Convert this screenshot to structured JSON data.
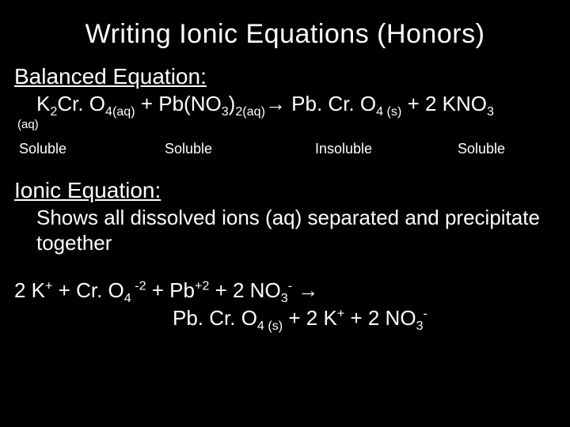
{
  "background_color": "#000000",
  "text_color": "#ffffff",
  "font_family": "Arial",
  "title": "Writing Ionic Equations  (Honors)",
  "balanced": {
    "heading": "Balanced Equation:",
    "react1_pre": "K",
    "react1_sub1": "2",
    "react1_mid": "Cr. O",
    "react1_sub2": "4(aq)",
    "plus1": " +  ",
    "react2_pre": "Pb(NO",
    "react2_sub1": "3",
    "react2_mid": ")",
    "react2_sub2": "2(aq)",
    "arrow": "→",
    "prod1_pre": " Pb. Cr. O",
    "prod1_sub1": "4",
    "prod1_state": " (s)",
    "plus2": "  +  ",
    "prod2_pre": "2 KNO",
    "prod2_sub1": "3",
    "tail_state": "(aq)"
  },
  "solubility": {
    "col1": "Soluble",
    "col2": "Soluble",
    "col3": "Insoluble",
    "col4": "Soluble"
  },
  "ionic_section": {
    "heading": "Ionic Equation:",
    "description": "Shows all  dissolved ions (aq) separated and precipitate together"
  },
  "ionic_eq": {
    "l1_a": "2 K",
    "l1_a_sup": "+",
    "l1_b": " + Cr. O",
    "l1_b_sub": "4",
    "l1_b_sup": " -2",
    "l1_c": " + Pb",
    "l1_c_sup": "+2",
    "l1_d": " + 2 NO",
    "l1_d_sub": "3",
    "l1_d_sup": "-",
    "l1_arrow": " →",
    "l2_a": "Pb. Cr. O",
    "l2_a_sub": "4",
    "l2_a_state": " (s)",
    "l2_b": " + 2 K",
    "l2_b_sup": "+",
    "l2_c": " + 2 NO",
    "l2_c_sub": "3",
    "l2_c_sup": "-"
  }
}
